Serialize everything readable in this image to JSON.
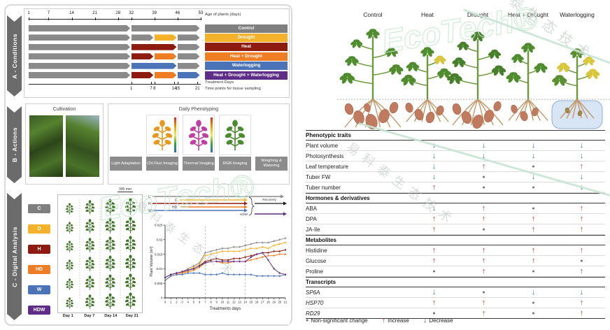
{
  "watermark": {
    "brand": "EcoTech",
    "reg": "®",
    "cn": "易科泰生态技术"
  },
  "colors": {
    "control": "#7f7f7f",
    "drought": "#f3b229",
    "heat": "#8e1b10",
    "heat_drought": "#ee7d23",
    "waterlogging": "#4a73b8",
    "hdw": "#5e2d87",
    "gray": "#8a8a8a",
    "recovery": "#1a1a1a",
    "up": "#cf3527",
    "down": "#3a6cc4",
    "ns": "#707070"
  },
  "panelA": {
    "ribbon": "A - Conditions",
    "top_axis": {
      "label": "Age of plants (days)",
      "ticks": [
        1,
        7,
        14,
        21,
        28,
        32,
        39,
        46,
        53
      ]
    },
    "bottom_axis": {
      "label1": "Treatment Days",
      "label2": "Time points for tissue sampling",
      "ticks": [
        1,
        7,
        8,
        14,
        15,
        21
      ]
    },
    "conditions": [
      {
        "label": "Control",
        "color_key": "control",
        "segments": [
          [
            "gray",
            1,
            32
          ],
          [
            "gray",
            32,
            53
          ]
        ]
      },
      {
        "label": "Drought",
        "color_key": "drought",
        "segments": [
          [
            "gray",
            1,
            32
          ],
          [
            "gray",
            32,
            39
          ],
          [
            "drought",
            39,
            46
          ],
          [
            "gray",
            46,
            53
          ]
        ]
      },
      {
        "label": "Heat",
        "color_key": "heat",
        "segments": [
          [
            "gray",
            1,
            32
          ],
          [
            "heat",
            32,
            46
          ],
          [
            "gray",
            46,
            53
          ]
        ]
      },
      {
        "label": "Heat + Drought",
        "color_key": "heat_drought",
        "segments": [
          [
            "gray",
            1,
            32
          ],
          [
            "heat",
            32,
            39
          ],
          [
            "heat_drought",
            39,
            46
          ],
          [
            "gray",
            46,
            53
          ]
        ]
      },
      {
        "label": "Waterlogging",
        "color_key": "waterlogging",
        "segments": [
          [
            "gray",
            1,
            32
          ],
          [
            "waterlogging",
            32,
            46
          ],
          [
            "gray",
            46,
            53
          ]
        ]
      },
      {
        "label": "Heat + Drought + Waterlogging",
        "color_key": "hdw",
        "segments": [
          [
            "gray",
            1,
            32
          ],
          [
            "heat",
            32,
            39
          ],
          [
            "heat_drought",
            39,
            46
          ],
          [
            "waterlogging",
            46,
            53
          ]
        ]
      }
    ]
  },
  "panelB": {
    "ribbon": "B - Actions",
    "cultivation_title": "Cultivation",
    "phenotyping_title": "Daily Phenotyping",
    "stations": [
      {
        "label": "Light Adaptation",
        "type": "photo"
      },
      {
        "label": "Chl Fluo Imaging",
        "type": "chlfluo"
      },
      {
        "label": "Thermal Imaging",
        "type": "thermal"
      },
      {
        "label": "RGB Imaging",
        "type": "rgb"
      },
      {
        "label": "Weighing & Watering",
        "type": "photo2"
      }
    ]
  },
  "panelC": {
    "ribbon": "C - Digital Analysis",
    "chips": [
      "C",
      "D",
      "H",
      "HD",
      "W",
      "HDW"
    ],
    "chip_color_keys": [
      "control",
      "drought",
      "heat",
      "heat_drought",
      "waterlogging",
      "hdw"
    ],
    "scale_bar": "300 mm",
    "day_labels": [
      "Day 1",
      "Day 7",
      "Day 14",
      "Day 21"
    ],
    "recovery_label": "Recovery"
  },
  "chart_data": {
    "type": "line",
    "title": "",
    "xlabel": "Treatments days",
    "ylabel": "Plant Volume (m³)",
    "x": [
      0,
      1,
      2,
      3,
      4,
      5,
      6,
      7,
      8,
      9,
      10,
      11,
      12,
      13,
      14,
      15,
      16,
      17,
      18,
      19,
      20,
      21
    ],
    "xlim": [
      0,
      21
    ],
    "ylim": [
      0,
      0.025
    ],
    "yticks": [
      0,
      0.005,
      0.01,
      0.015,
      0.02,
      0.025
    ],
    "vlines": [
      7,
      14
    ],
    "legend_position": "top",
    "series": [
      {
        "name": "C",
        "color_key": "gray",
        "values": [
          0.007,
          0.008,
          0.0085,
          0.009,
          0.01,
          0.011,
          0.012,
          0.0155,
          0.016,
          0.0165,
          0.017,
          0.017,
          0.0175,
          0.0175,
          0.018,
          0.0185,
          0.019,
          0.019,
          0.019,
          0.0195,
          0.02,
          0.0205
        ]
      },
      {
        "name": "D",
        "color_key": "drought",
        "values": [
          0.006,
          0.0075,
          0.008,
          0.0085,
          0.0095,
          0.0105,
          0.0115,
          0.0145,
          0.015,
          0.0155,
          0.016,
          0.016,
          0.016,
          0.016,
          0.0165,
          0.017,
          0.017,
          0.0175,
          0.017,
          0.018,
          0.0185,
          0.019
        ]
      },
      {
        "name": "H",
        "color_key": "heat",
        "values": [
          0.007,
          0.008,
          0.0085,
          0.009,
          0.0095,
          0.01,
          0.011,
          0.0125,
          0.013,
          0.0135,
          0.013,
          0.013,
          0.0135,
          0.0135,
          0.014,
          0.0145,
          0.015,
          0.0155,
          0.0155,
          0.016,
          0.016,
          0.0165
        ]
      },
      {
        "name": "HD",
        "color_key": "heat_drought",
        "values": [
          0.006,
          0.0075,
          0.008,
          0.0085,
          0.009,
          0.0095,
          0.0105,
          0.012,
          0.0125,
          0.0125,
          0.012,
          0.012,
          0.0125,
          0.0125,
          0.0125,
          0.013,
          0.0135,
          0.014,
          0.0145,
          0.0145,
          0.015,
          0.015
        ]
      },
      {
        "name": "W",
        "color_key": "waterlogging",
        "values": [
          0.006,
          0.0075,
          0.008,
          0.008,
          0.0085,
          0.0085,
          0.0085,
          0.008,
          0.008,
          0.008,
          0.0085,
          0.008,
          0.008,
          0.008,
          0.008,
          0.008,
          0.0075,
          0.0075,
          0.0075,
          0.0075,
          0.0075,
          0.008
        ]
      },
      {
        "name": "HDW",
        "color_key": "hdw",
        "values": [
          0.007,
          0.008,
          0.0085,
          0.009,
          0.0095,
          0.01,
          0.011,
          0.012,
          0.0125,
          0.0125,
          0.0125,
          0.0125,
          0.0125,
          0.0125,
          0.0125,
          0.014,
          0.015,
          0.0155,
          0.013,
          0.01,
          0.0085,
          0.008
        ]
      }
    ]
  },
  "plants": {
    "labels": [
      "Control",
      "Heat",
      "Drought",
      "Heat + Drought",
      "Waterlogging"
    ]
  },
  "stress_table": {
    "columns": [
      "Heat",
      "Drought",
      "Heat + Drought",
      "Waterlogging"
    ],
    "sections": [
      {
        "title": "Phenotypic traits",
        "rows": [
          {
            "label": "Plant volume",
            "cells": [
              "down",
              "down",
              "down",
              "down"
            ]
          },
          {
            "label": "Photosynthesis",
            "cells": [
              "down",
              "down",
              "down",
              "down"
            ]
          },
          {
            "label": "Leaf temperature",
            "cells": [
              "down",
              "up",
              "ns",
              "up"
            ]
          },
          {
            "label": "Tuber FW",
            "cells": [
              "down",
              "ns",
              "down",
              "down"
            ]
          },
          {
            "label": "Tuber number",
            "cells": [
              "up",
              "ns",
              "ns",
              "down"
            ]
          }
        ]
      },
      {
        "title": "Hormones &  derivatives",
        "rows": [
          {
            "label": "ABA",
            "cells": [
              "down",
              "up",
              "ns",
              "up"
            ]
          },
          {
            "label": "DPA",
            "cells": [
              "up",
              "up",
              "up",
              "up"
            ]
          },
          {
            "label": "JA-Ile",
            "cells": [
              "up",
              "ns",
              "up",
              "up"
            ]
          }
        ]
      },
      {
        "title": "Metabolites",
        "rows": [
          {
            "label": "Histidine",
            "cells": [
              "up",
              "up",
              "up",
              "up"
            ]
          },
          {
            "label": "Glucose",
            "cells": [
              "up",
              "up",
              "up",
              "ns"
            ]
          },
          {
            "label": "Proline",
            "cells": [
              "ns",
              "up",
              "ns",
              "up"
            ]
          }
        ]
      },
      {
        "title": "Transcripts",
        "rows": [
          {
            "label": "SP6A",
            "italic": true,
            "cells": [
              "down",
              "ns",
              "down",
              "down"
            ]
          },
          {
            "label": "HSP70",
            "italic": true,
            "cells": [
              "up",
              "up",
              "ns",
              "up"
            ]
          },
          {
            "label": "RD29",
            "italic": true,
            "cells": [
              "ns",
              "up",
              "ns",
              "up"
            ]
          }
        ]
      }
    ],
    "legend": {
      "ns": "Non-significant change",
      "up": "Increase",
      "down": "Decrease"
    }
  }
}
